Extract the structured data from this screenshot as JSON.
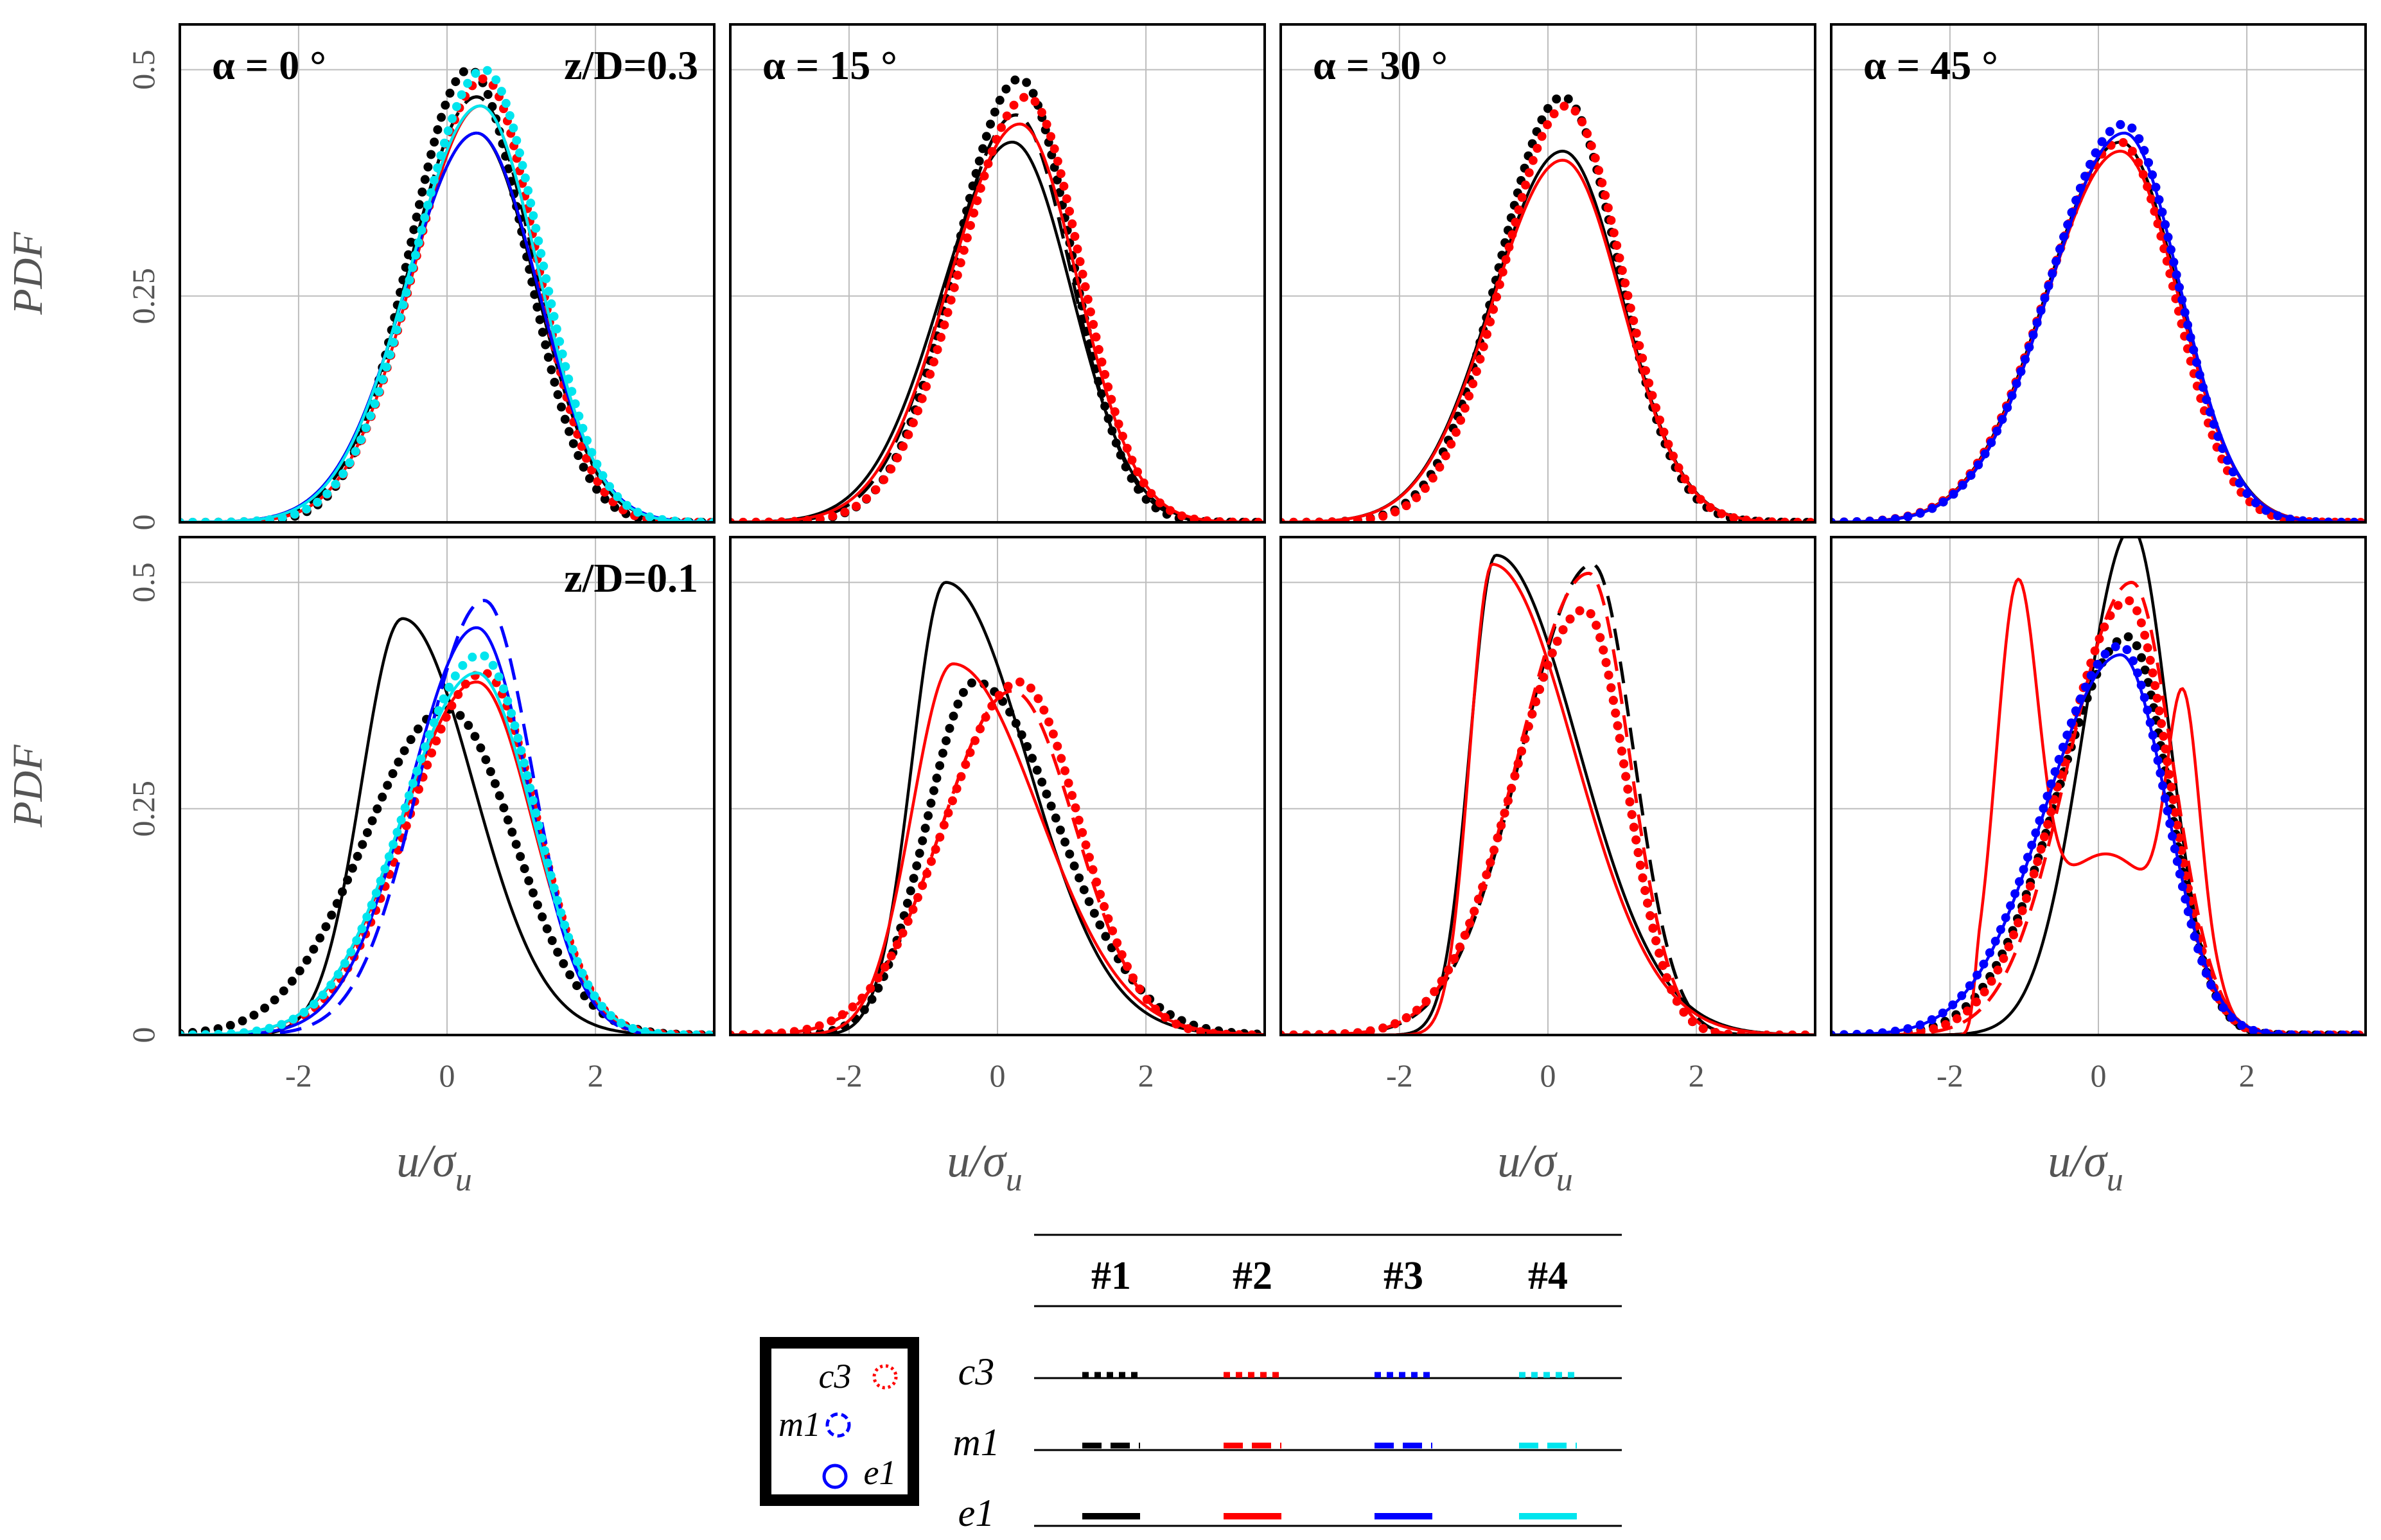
{
  "chart_data": {
    "type": "line",
    "panel_grid": "2 rows x 4 columns",
    "ylabel": "PDF",
    "xlabel": "u/σu",
    "xlabel_main": "u/σ",
    "xlabel_sub": "u",
    "xlim": [
      -3.6,
      3.6
    ],
    "ylim": [
      0,
      0.55
    ],
    "xticks": [
      -2,
      0,
      2
    ],
    "xtick_labels": [
      "-2",
      "0",
      "2"
    ],
    "yticks": [
      0,
      0.25,
      0.5
    ],
    "ytick_labels": [
      "0",
      "0.25",
      "0.5"
    ],
    "grid": true,
    "colors": {
      "#1": "#000000",
      "#2": "#ff0000",
      "#3": "#0000ff",
      "#4": "#00e5ee"
    },
    "styles": {
      "c3": "dotted",
      "m1": "dashed",
      "e1": "solid"
    },
    "series_name_format": "<position>-<case>",
    "panels": [
      {
        "row": 0,
        "col": 0,
        "alpha": "α = 0 °",
        "zD": "z/D=0.3",
        "series": [
          {
            "name": "c3-#1",
            "shape": "gauss",
            "mu": 0.3,
            "sl": 0.8,
            "sr": 0.75,
            "peak": 0.5
          },
          {
            "name": "m1-#1",
            "shape": "gauss",
            "mu": 0.4,
            "sl": 0.9,
            "sr": 0.78,
            "peak": 0.47
          },
          {
            "name": "e1-#1",
            "shape": "gauss",
            "mu": 0.4,
            "sl": 0.95,
            "sr": 0.8,
            "peak": 0.43
          },
          {
            "name": "c3-#2",
            "shape": "gauss",
            "mu": 0.5,
            "sl": 0.9,
            "sr": 0.7,
            "peak": 0.49
          },
          {
            "name": "e1-#2",
            "shape": "gauss",
            "mu": 0.45,
            "sl": 0.9,
            "sr": 0.78,
            "peak": 0.46
          },
          {
            "name": "e1-#3",
            "shape": "gauss",
            "mu": 0.4,
            "sl": 0.95,
            "sr": 0.82,
            "peak": 0.43
          },
          {
            "name": "c3-#4",
            "shape": "gauss",
            "mu": 0.5,
            "sl": 0.9,
            "sr": 0.75,
            "peak": 0.5
          },
          {
            "name": "e1-#4",
            "shape": "gauss",
            "mu": 0.45,
            "sl": 0.95,
            "sr": 0.78,
            "peak": 0.46
          }
        ]
      },
      {
        "row": 0,
        "col": 1,
        "alpha": "α = 15 °",
        "zD": "",
        "series": [
          {
            "name": "c3-#1",
            "shape": "gauss",
            "mu": 0.3,
            "sl": 0.85,
            "sr": 0.7,
            "peak": 0.49
          },
          {
            "name": "m1-#1",
            "shape": "gauss",
            "mu": 0.25,
            "sl": 0.9,
            "sr": 0.75,
            "peak": 0.45
          },
          {
            "name": "e1-#1",
            "shape": "gauss",
            "mu": 0.2,
            "sl": 0.95,
            "sr": 0.8,
            "peak": 0.42
          },
          {
            "name": "c3-#2",
            "shape": "gauss",
            "mu": 0.4,
            "sl": 0.9,
            "sr": 0.72,
            "peak": 0.47
          },
          {
            "name": "e1-#2",
            "shape": "gauss",
            "mu": 0.3,
            "sl": 0.95,
            "sr": 0.78,
            "peak": 0.44
          }
        ]
      },
      {
        "row": 0,
        "col": 2,
        "alpha": "α = 30 °",
        "zD": "",
        "series": [
          {
            "name": "c3-#1",
            "shape": "gauss",
            "mu": 0.2,
            "sl": 0.85,
            "sr": 0.75,
            "peak": 0.47
          },
          {
            "name": "e1-#1",
            "shape": "gauss",
            "mu": 0.2,
            "sl": 0.95,
            "sr": 0.8,
            "peak": 0.41
          },
          {
            "name": "c3-#2",
            "shape": "gauss",
            "mu": 0.25,
            "sl": 0.85,
            "sr": 0.75,
            "peak": 0.46
          },
          {
            "name": "e1-#2",
            "shape": "gauss",
            "mu": 0.2,
            "sl": 0.95,
            "sr": 0.8,
            "peak": 0.4
          }
        ]
      },
      {
        "row": 0,
        "col": 3,
        "alpha": "α = 45 °",
        "zD": "",
        "series": [
          {
            "name": "c3-#1",
            "shape": "gauss",
            "mu": 0.35,
            "sl": 1.0,
            "sr": 0.72,
            "peak": 0.44
          },
          {
            "name": "e1-#1",
            "shape": "gauss",
            "mu": 0.3,
            "sl": 1.0,
            "sr": 0.78,
            "peak": 0.42
          },
          {
            "name": "c3-#2",
            "shape": "gauss",
            "mu": 0.3,
            "sl": 1.0,
            "sr": 0.72,
            "peak": 0.42
          },
          {
            "name": "e1-#2",
            "shape": "gauss",
            "mu": 0.3,
            "sl": 1.0,
            "sr": 0.78,
            "peak": 0.41
          },
          {
            "name": "c3-#3",
            "shape": "gauss",
            "mu": 0.35,
            "sl": 1.0,
            "sr": 0.72,
            "peak": 0.44
          },
          {
            "name": "e1-#3",
            "shape": "gauss",
            "mu": 0.35,
            "sl": 1.0,
            "sr": 0.75,
            "peak": 0.43
          }
        ]
      },
      {
        "row": 1,
        "col": 0,
        "alpha": "",
        "zD": "z/D=0.1",
        "series": [
          {
            "name": "e1-#1",
            "shape": "gauss",
            "mu": -0.6,
            "sl": 0.55,
            "sr": 0.95,
            "peak": 0.46
          },
          {
            "name": "c3-#1",
            "shape": "gauss",
            "mu": 0.0,
            "sl": 1.1,
            "sr": 0.9,
            "peak": 0.36
          },
          {
            "name": "c3-#2",
            "shape": "gauss",
            "mu": 0.5,
            "sl": 1.0,
            "sr": 0.7,
            "peak": 0.4
          },
          {
            "name": "e1-#2",
            "shape": "gauss",
            "mu": 0.4,
            "sl": 1.0,
            "sr": 0.75,
            "peak": 0.39
          },
          {
            "name": "m1-#3",
            "shape": "gauss",
            "mu": 0.5,
            "sl": 0.85,
            "sr": 0.65,
            "peak": 0.48
          },
          {
            "name": "e1-#3",
            "shape": "gauss",
            "mu": 0.4,
            "sl": 0.9,
            "sr": 0.7,
            "peak": 0.45
          },
          {
            "name": "c3-#4",
            "shape": "gauss",
            "mu": 0.45,
            "sl": 1.0,
            "sr": 0.72,
            "peak": 0.42
          },
          {
            "name": "e1-#4",
            "shape": "gauss",
            "mu": 0.4,
            "sl": 1.0,
            "sr": 0.75,
            "peak": 0.4
          }
        ]
      },
      {
        "row": 1,
        "col": 1,
        "alpha": "",
        "zD": "",
        "series": [
          {
            "name": "e1-#1",
            "shape": "gauss",
            "mu": -0.7,
            "sl": 0.45,
            "sr": 1.1,
            "peak": 0.5
          },
          {
            "name": "c3-#1",
            "shape": "gauss",
            "mu": -0.3,
            "sl": 0.65,
            "sr": 1.1,
            "peak": 0.39
          },
          {
            "name": "c3-#2",
            "shape": "gauss",
            "mu": 0.3,
            "sl": 1.0,
            "sr": 0.8,
            "peak": 0.39
          },
          {
            "name": "e1-#2",
            "shape": "gauss",
            "mu": -0.6,
            "sl": 0.55,
            "sr": 1.15,
            "peak": 0.41
          },
          {
            "name": "m1-#2",
            "shape": "gauss",
            "mu": 0.2,
            "sl": 0.95,
            "sr": 0.85,
            "peak": 0.38
          }
        ]
      },
      {
        "row": 1,
        "col": 2,
        "alpha": "",
        "zD": "",
        "series": [
          {
            "name": "e1-#1",
            "shape": "gauss",
            "mu": -0.7,
            "sl": 0.35,
            "sr": 1.1,
            "peak": 0.53
          },
          {
            "name": "m1-#1",
            "shape": "gauss",
            "mu": 0.6,
            "sl": 0.95,
            "sr": 0.55,
            "peak": 0.52
          },
          {
            "name": "c3-#1",
            "shape": "gauss",
            "mu": 0.5,
            "sl": 0.95,
            "sr": 0.55,
            "peak": 0.47
          },
          {
            "name": "c3-#2",
            "shape": "gauss",
            "mu": 0.5,
            "sl": 0.95,
            "sr": 0.55,
            "peak": 0.47
          },
          {
            "name": "m1-#2",
            "shape": "gauss",
            "mu": 0.55,
            "sl": 0.95,
            "sr": 0.55,
            "peak": 0.51
          },
          {
            "name": "e1-#2",
            "shape": "gauss",
            "mu": -0.75,
            "sl": 0.3,
            "sr": 1.1,
            "peak": 0.52
          }
        ]
      },
      {
        "row": 1,
        "col": 3,
        "alpha": "",
        "zD": "",
        "series": [
          {
            "name": "e1-#1",
            "shape": "gauss",
            "mu": 0.45,
            "sl": 0.65,
            "sr": 0.5,
            "peak": 0.56
          },
          {
            "name": "c3-#1",
            "shape": "gauss",
            "mu": 0.4,
            "sl": 0.95,
            "sr": 0.55,
            "peak": 0.44
          },
          {
            "name": "c3-#2",
            "shape": "gauss",
            "mu": 0.4,
            "sl": 0.9,
            "sr": 0.55,
            "peak": 0.48
          },
          {
            "name": "m1-#2",
            "shape": "gauss",
            "mu": 0.45,
            "sl": 0.85,
            "sr": 0.55,
            "peak": 0.5
          },
          {
            "name": "e1-#2",
            "shape": "trimodal"
          },
          {
            "name": "c3-#3",
            "shape": "gauss",
            "mu": 0.3,
            "sl": 1.0,
            "sr": 0.6,
            "peak": 0.43
          },
          {
            "name": "e1-#3",
            "shape": "gauss",
            "mu": 0.3,
            "sl": 1.0,
            "sr": 0.62,
            "peak": 0.42
          }
        ]
      }
    ]
  },
  "legend": {
    "headers": [
      "#1",
      "#2",
      "#3",
      "#4"
    ],
    "rows": [
      "c3",
      "m1",
      "e1"
    ]
  },
  "inset": {
    "labels": [
      "c3",
      "m1",
      "e1"
    ],
    "marker_colors": {
      "c3": "#ff0000",
      "m1": "#0000ff",
      "e1": "#0000ff"
    }
  }
}
